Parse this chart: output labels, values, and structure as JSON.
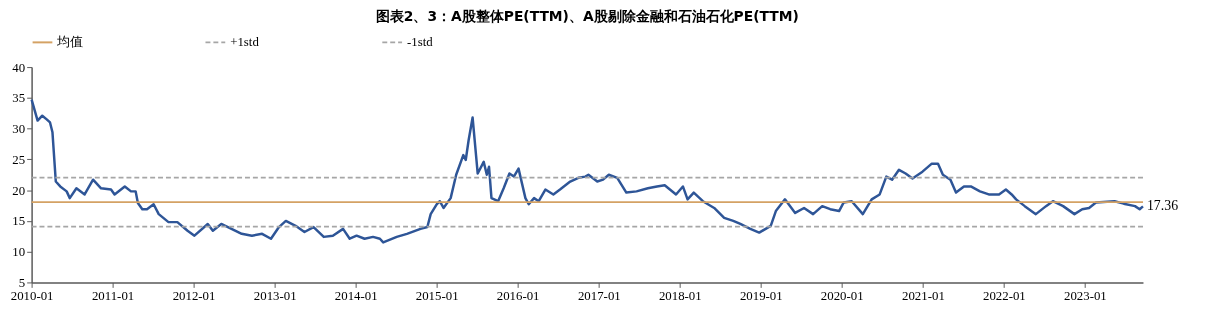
{
  "chart_data": {
    "type": "line",
    "title": "图表2、3：A股整体PE(TTM)、A股剔除金融和石油石化PE(TTM)",
    "series": [
      {
        "color": "#2e5597",
        "x": [
          "2010-01-01",
          "2010-01-28",
          "2010-02-18",
          "2010-03-10",
          "2010-03-25",
          "2010-04-05",
          "2010-04-20",
          "2010-05-10",
          "2010-06-08",
          "2010-06-22",
          "2010-07-22",
          "2010-08-28",
          "2010-10-05",
          "2010-11-10",
          "2010-12-25",
          "2011-01-10",
          "2011-02-25",
          "2011-03-25",
          "2011-04-15",
          "2011-04-25",
          "2011-05-15",
          "2011-06-05",
          "2011-07-05",
          "2011-07-28",
          "2011-09-10",
          "2011-10-20",
          "2011-12-05",
          "2012-01-05",
          "2012-03-05",
          "2012-03-28",
          "2012-05-05",
          "2012-06-20",
          "2012-08-05",
          "2012-09-20",
          "2012-11-05",
          "2012-12-15",
          "2013-01-20",
          "2013-02-20",
          "2013-04-05",
          "2013-05-15",
          "2013-06-25",
          "2013-08-10",
          "2013-09-20",
          "2013-11-05",
          "2013-12-05",
          "2014-01-05",
          "2014-02-10",
          "2014-03-20",
          "2014-04-20",
          "2014-05-05",
          "2014-07-05",
          "2014-08-20",
          "2014-10-20",
          "2014-11-20",
          "2014-12-05",
          "2015-01-01",
          "2015-01-15",
          "2015-02-01",
          "2015-03-05",
          "2015-03-30",
          "2015-05-01",
          "2015-05-12",
          "2015-05-25",
          "2015-06-12",
          "2015-07-05",
          "2015-08-01",
          "2015-08-15",
          "2015-08-25",
          "2015-09-05",
          "2015-10-05",
          "2015-10-30",
          "2015-11-25",
          "2015-12-15",
          "2016-01-05",
          "2016-02-05",
          "2016-02-20",
          "2016-03-15",
          "2016-04-05",
          "2016-05-05",
          "2016-06-10",
          "2016-07-10",
          "2016-08-25",
          "2016-10-01",
          "2016-11-01",
          "2016-11-15",
          "2016-12-25",
          "2017-01-20",
          "2017-02-15",
          "2017-03-25",
          "2017-05-05",
          "2017-06-20",
          "2017-08-10",
          "2017-09-20",
          "2017-10-25",
          "2017-12-15",
          "2018-01-15",
          "2018-02-05",
          "2018-03-05",
          "2018-04-15",
          "2018-06-05",
          "2018-07-20",
          "2018-08-30",
          "2018-10-01",
          "2018-11-15",
          "2018-12-25",
          "2019-02-15",
          "2019-03-10",
          "2019-04-20",
          "2019-06-05",
          "2019-07-15",
          "2019-08-25",
          "2019-10-05",
          "2019-11-10",
          "2019-12-20",
          "2020-01-10",
          "2020-02-15",
          "2020-04-05",
          "2020-05-15",
          "2020-06-20",
          "2020-07-20",
          "2020-08-15",
          "2020-09-15",
          "2020-10-15",
          "2020-11-15",
          "2020-12-30",
          "2021-02-10",
          "2021-03-10",
          "2021-04-01",
          "2021-05-05",
          "2021-05-30",
          "2021-07-05",
          "2021-08-05",
          "2021-09-15",
          "2021-10-25",
          "2021-12-10",
          "2022-01-10",
          "2022-02-05",
          "2022-02-25",
          "2022-04-05",
          "2022-05-25",
          "2022-07-10",
          "2022-08-10",
          "2022-09-25",
          "2022-11-15",
          "2022-12-20",
          "2023-01-20",
          "2023-02-20",
          "2023-05-15",
          "2023-06-25",
          "2023-08-15",
          "2023-09-05",
          "2023-09-20"
        ],
        "values": [
          34.7,
          31.3,
          32.1,
          31.5,
          31.0,
          29.4,
          21.4,
          20.6,
          19.8,
          18.7,
          20.3,
          19.3,
          21.7,
          20.3,
          20.1,
          19.3,
          20.6,
          19.8,
          19.8,
          17.9,
          16.9,
          16.9,
          17.7,
          16.1,
          14.8,
          14.8,
          13.4,
          12.6,
          14.5,
          13.4,
          14.5,
          13.7,
          12.9,
          12.6,
          12.9,
          12.1,
          14.0,
          15.0,
          14.2,
          13.2,
          14.0,
          12.4,
          12.6,
          13.7,
          12.1,
          12.6,
          12.1,
          12.4,
          12.1,
          11.5,
          12.4,
          12.9,
          13.7,
          14.0,
          16.1,
          17.7,
          18.2,
          17.1,
          18.7,
          22.5,
          25.7,
          24.9,
          28.1,
          31.8,
          22.7,
          24.6,
          22.5,
          23.8,
          18.7,
          18.2,
          20.3,
          22.7,
          22.2,
          23.5,
          18.7,
          17.7,
          18.7,
          18.2,
          20.1,
          19.3,
          20.1,
          21.4,
          22.0,
          22.2,
          22.5,
          21.4,
          21.7,
          22.5,
          22.0,
          19.6,
          19.8,
          20.3,
          20.6,
          20.8,
          19.3,
          20.6,
          18.5,
          19.6,
          18.2,
          17.1,
          15.5,
          15.0,
          14.5,
          13.7,
          13.1,
          14.2,
          16.6,
          18.5,
          16.3,
          17.1,
          16.1,
          17.4,
          16.9,
          16.6,
          18.0,
          18.2,
          16.1,
          18.5,
          19.3,
          22.2,
          21.7,
          23.3,
          22.7,
          21.9,
          23.0,
          24.3,
          24.3,
          22.5,
          21.7,
          19.6,
          20.6,
          20.6,
          19.8,
          19.3,
          19.3,
          20.1,
          19.3,
          18.5,
          17.4,
          16.1,
          17.4,
          18.2,
          17.4,
          16.1,
          16.9,
          17.1,
          18.0,
          18.2,
          17.8,
          17.4,
          16.9,
          17.36
        ]
      }
    ],
    "ref_lines": [
      {
        "axis": "y",
        "value": 18.05,
        "label": "均值",
        "color": "#d4a264",
        "line_style": "solid"
      },
      {
        "axis": "y",
        "value": 22.05,
        "label": "+1std",
        "color": "#a6a6a6",
        "line_style": "dashed"
      },
      {
        "axis": "y",
        "value": 14.06,
        "label": "-1std",
        "color": "#a6a6a6",
        "line_style": "dashed"
      }
    ],
    "annotations": [
      {
        "text": "17.36",
        "x": "2023-09-20",
        "y": 17.36
      }
    ],
    "xlim": [
      "2010-01-01",
      "2023-09-20"
    ],
    "xticks": [
      "2010-01",
      "2011-01",
      "2012-01",
      "2013-01",
      "2014-01",
      "2015-01",
      "2016-01",
      "2017-01",
      "2018-01",
      "2019-01",
      "2020-01",
      "2021-01",
      "2022-01",
      "2023-01"
    ],
    "ylim": [
      5,
      40
    ],
    "yticks": [
      5,
      10,
      15,
      20,
      25,
      30,
      35,
      40
    ],
    "grid": false,
    "legend": "top"
  }
}
